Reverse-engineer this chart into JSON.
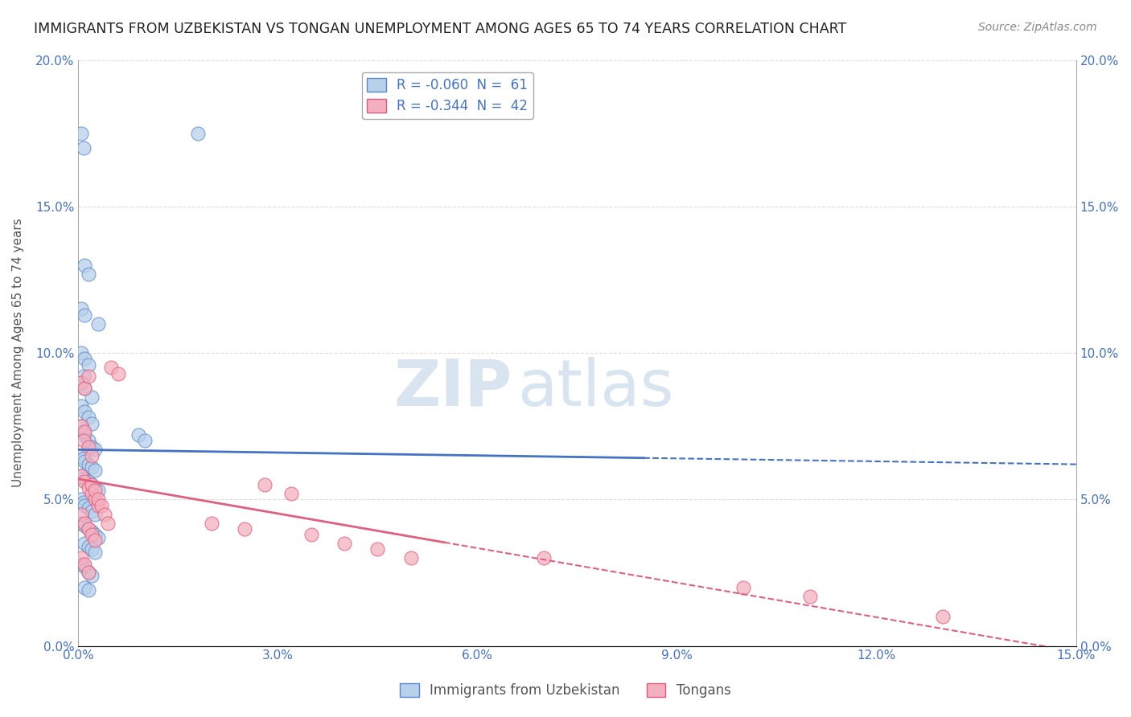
{
  "title": "IMMIGRANTS FROM UZBEKISTAN VS TONGAN UNEMPLOYMENT AMONG AGES 65 TO 74 YEARS CORRELATION CHART",
  "source": "Source: ZipAtlas.com",
  "ylabel": "Unemployment Among Ages 65 to 74 years",
  "xlim": [
    0.0,
    0.15
  ],
  "ylim": [
    0.0,
    0.2
  ],
  "xticks": [
    0.0,
    0.03,
    0.06,
    0.09,
    0.12,
    0.15
  ],
  "yticks": [
    0.0,
    0.05,
    0.1,
    0.15,
    0.2
  ],
  "xtick_labels": [
    "0.0%",
    "3.0%",
    "6.0%",
    "9.0%",
    "12.0%",
    "15.0%"
  ],
  "ytick_labels": [
    "0.0%",
    "5.0%",
    "10.0%",
    "15.0%",
    "20.0%"
  ],
  "legend_blue_label": "R = -0.060  N =  61",
  "legend_pink_label": "R = -0.344  N =  42",
  "blue_fill": "#b8d0ea",
  "blue_edge": "#5588cc",
  "pink_fill": "#f4b0c0",
  "pink_edge": "#e05878",
  "blue_line_color": "#4472c4",
  "pink_line_color": "#e06080",
  "blue_scatter": [
    [
      0.0005,
      0.175
    ],
    [
      0.0008,
      0.17
    ],
    [
      0.001,
      0.13
    ],
    [
      0.0015,
      0.127
    ],
    [
      0.0005,
      0.115
    ],
    [
      0.001,
      0.113
    ],
    [
      0.003,
      0.11
    ],
    [
      0.0005,
      0.1
    ],
    [
      0.001,
      0.098
    ],
    [
      0.0015,
      0.096
    ],
    [
      0.0005,
      0.09
    ],
    [
      0.0008,
      0.092
    ],
    [
      0.001,
      0.088
    ],
    [
      0.002,
      0.085
    ],
    [
      0.0005,
      0.082
    ],
    [
      0.001,
      0.08
    ],
    [
      0.0015,
      0.078
    ],
    [
      0.002,
      0.076
    ],
    [
      0.0005,
      0.075
    ],
    [
      0.0008,
      0.073
    ],
    [
      0.001,
      0.072
    ],
    [
      0.0015,
      0.07
    ],
    [
      0.002,
      0.068
    ],
    [
      0.0025,
      0.067
    ],
    [
      0.0005,
      0.065
    ],
    [
      0.0008,
      0.064
    ],
    [
      0.001,
      0.063
    ],
    [
      0.0015,
      0.062
    ],
    [
      0.002,
      0.061
    ],
    [
      0.0025,
      0.06
    ],
    [
      0.0005,
      0.058
    ],
    [
      0.001,
      0.057
    ],
    [
      0.0015,
      0.056
    ],
    [
      0.002,
      0.055
    ],
    [
      0.0025,
      0.054
    ],
    [
      0.003,
      0.053
    ],
    [
      0.0005,
      0.05
    ],
    [
      0.0008,
      0.049
    ],
    [
      0.001,
      0.048
    ],
    [
      0.0015,
      0.047
    ],
    [
      0.002,
      0.046
    ],
    [
      0.0025,
      0.045
    ],
    [
      0.0005,
      0.042
    ],
    [
      0.001,
      0.041
    ],
    [
      0.0015,
      0.04
    ],
    [
      0.002,
      0.039
    ],
    [
      0.0025,
      0.038
    ],
    [
      0.003,
      0.037
    ],
    [
      0.001,
      0.035
    ],
    [
      0.0015,
      0.034
    ],
    [
      0.002,
      0.033
    ],
    [
      0.0025,
      0.032
    ],
    [
      0.0005,
      0.028
    ],
    [
      0.001,
      0.027
    ],
    [
      0.0015,
      0.025
    ],
    [
      0.002,
      0.024
    ],
    [
      0.001,
      0.02
    ],
    [
      0.0015,
      0.019
    ],
    [
      0.009,
      0.072
    ],
    [
      0.01,
      0.07
    ],
    [
      0.018,
      0.175
    ]
  ],
  "pink_scatter": [
    [
      0.0005,
      0.09
    ],
    [
      0.001,
      0.088
    ],
    [
      0.0015,
      0.092
    ],
    [
      0.0005,
      0.075
    ],
    [
      0.001,
      0.073
    ],
    [
      0.0008,
      0.07
    ],
    [
      0.0015,
      0.068
    ],
    [
      0.002,
      0.065
    ],
    [
      0.0005,
      0.058
    ],
    [
      0.001,
      0.056
    ],
    [
      0.0015,
      0.054
    ],
    [
      0.002,
      0.052
    ],
    [
      0.0025,
      0.05
    ],
    [
      0.003,
      0.048
    ],
    [
      0.0005,
      0.045
    ],
    [
      0.001,
      0.042
    ],
    [
      0.0015,
      0.04
    ],
    [
      0.002,
      0.038
    ],
    [
      0.0025,
      0.036
    ],
    [
      0.005,
      0.095
    ],
    [
      0.006,
      0.093
    ],
    [
      0.0005,
      0.03
    ],
    [
      0.001,
      0.028
    ],
    [
      0.0015,
      0.025
    ],
    [
      0.002,
      0.055
    ],
    [
      0.0025,
      0.053
    ],
    [
      0.003,
      0.05
    ],
    [
      0.0035,
      0.048
    ],
    [
      0.004,
      0.045
    ],
    [
      0.0045,
      0.042
    ],
    [
      0.02,
      0.042
    ],
    [
      0.025,
      0.04
    ],
    [
      0.028,
      0.055
    ],
    [
      0.032,
      0.052
    ],
    [
      0.035,
      0.038
    ],
    [
      0.04,
      0.035
    ],
    [
      0.045,
      0.033
    ],
    [
      0.05,
      0.03
    ],
    [
      0.07,
      0.03
    ],
    [
      0.1,
      0.02
    ],
    [
      0.11,
      0.017
    ],
    [
      0.13,
      0.01
    ]
  ],
  "blue_line": {
    "x0": 0.0,
    "y0": 0.067,
    "x1": 0.15,
    "y1": 0.062,
    "solid_end": 0.085
  },
  "pink_line": {
    "x0": 0.0,
    "y0": 0.057,
    "x1": 0.15,
    "y1": -0.002,
    "solid_end": 0.055
  },
  "watermark_zip": "ZIP",
  "watermark_atlas": "atlas",
  "watermark_color": "#d8e4f0",
  "background_color": "#ffffff",
  "grid_color": "#dddddd"
}
